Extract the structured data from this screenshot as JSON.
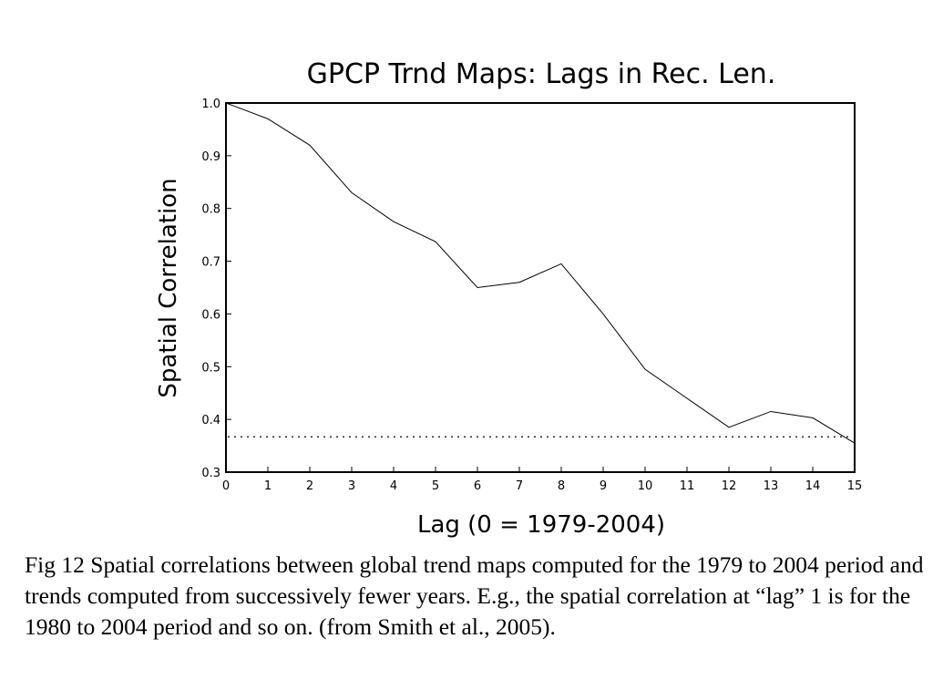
{
  "chart_data": {
    "type": "line",
    "title": "GPCP Trnd Maps: Lags in Rec. Len.",
    "xlabel": "Lag (0 = 1979-2004)",
    "ylabel": "Spatial Correlation",
    "xlim": [
      0,
      15
    ],
    "ylim": [
      0.3,
      1.0
    ],
    "x_ticks": [
      "0",
      "1",
      "2",
      "3",
      "4",
      "5",
      "6",
      "7",
      "8",
      "9",
      "10",
      "11",
      "12",
      "13",
      "14",
      "15"
    ],
    "y_ticks": [
      "0.3",
      "0.4",
      "0.5",
      "0.6",
      "0.7",
      "0.8",
      "0.9",
      "1.0"
    ],
    "x": [
      0,
      1,
      2,
      3,
      4,
      5,
      6,
      7,
      8,
      9,
      10,
      11,
      12,
      13,
      14,
      15
    ],
    "series": [
      {
        "values": [
          1.0,
          0.97,
          0.92,
          0.83,
          0.775,
          0.737,
          0.65,
          0.66,
          0.695,
          0.6,
          0.495,
          0.44,
          0.385,
          0.415,
          0.403,
          0.355
        ]
      }
    ],
    "reference_line": {
      "y": 0.367,
      "style": "dotted"
    },
    "grid": false,
    "line_color": "#000000"
  },
  "caption": {
    "text": "Fig 12 Spatial correlations between global trend maps computed for the 1979 to 2004 period and trends computed from successively fewer years. E.g., the spatial correlation at “lag” 1 is for the 1980 to 2004 period and so on. (from Smith et al., 2005)."
  }
}
